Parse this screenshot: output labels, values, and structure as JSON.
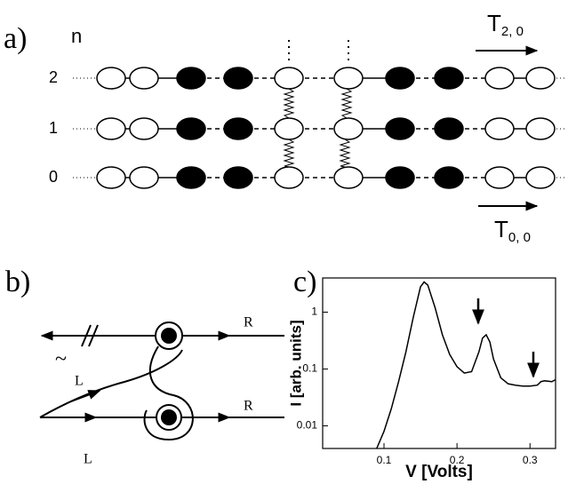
{
  "panel_a": {
    "label": "a)",
    "n_label": "n",
    "rows": [
      "2",
      "1",
      "0"
    ],
    "t_top": {
      "main": "T",
      "sub": "2, 0"
    },
    "t_bottom": {
      "main": "T",
      "sub": "0, 0"
    }
  },
  "panel_b": {
    "label": "b)",
    "right_labels": [
      "R",
      "R"
    ],
    "left_labels": [
      "L",
      "L"
    ],
    "tilde": "~"
  },
  "panel_c": {
    "label": "c)"
  },
  "chart_data": {
    "type": "line",
    "x_label": "V [Volts]",
    "y_label": "I [arb. units]",
    "x": [
      0.09,
      0.1,
      0.11,
      0.12,
      0.13,
      0.14,
      0.15,
      0.155,
      0.16,
      0.17,
      0.18,
      0.19,
      0.2,
      0.21,
      0.22,
      0.23,
      0.235,
      0.24,
      0.245,
      0.25,
      0.26,
      0.27,
      0.28,
      0.29,
      0.3,
      0.31,
      0.315,
      0.32,
      0.33,
      0.335
    ],
    "series": [
      {
        "color": "#000000",
        "values": [
          0.004,
          0.008,
          0.02,
          0.06,
          0.2,
          0.8,
          2.8,
          3.4,
          3.0,
          1.2,
          0.4,
          0.18,
          0.11,
          0.085,
          0.09,
          0.2,
          0.35,
          0.4,
          0.3,
          0.15,
          0.07,
          0.055,
          0.052,
          0.05,
          0.05,
          0.052,
          0.06,
          0.062,
          0.06,
          0.065
        ]
      }
    ],
    "xlim": [
      0.016,
      0.335
    ],
    "ylim": [
      0.004,
      4
    ],
    "xticks": [
      0.1,
      0.2,
      0.3
    ],
    "yticks": [
      0.01,
      0.1,
      1
    ],
    "log_y": true
  }
}
